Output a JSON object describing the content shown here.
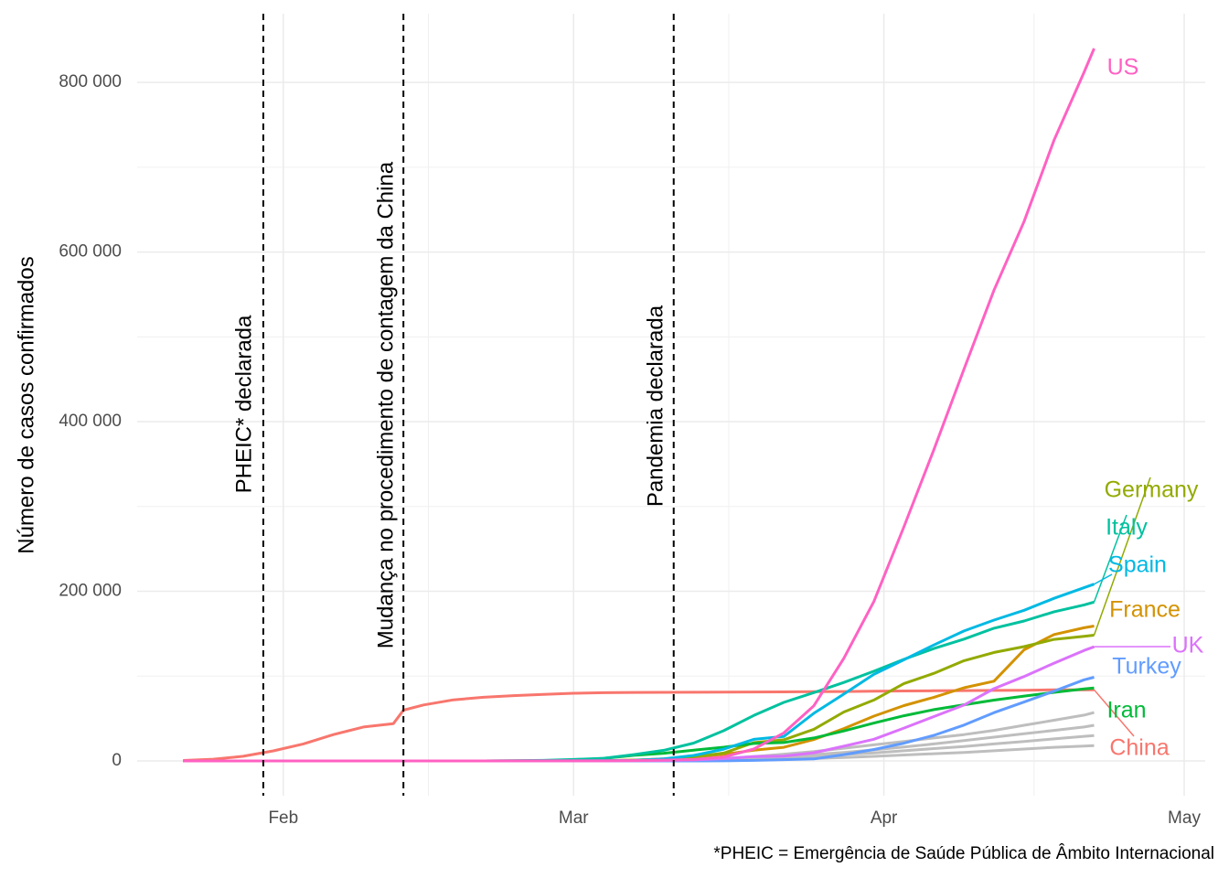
{
  "chart_data": {
    "type": "line",
    "y_label": "Número de casos confirmados",
    "caption": "*PHEIC = Emergência de Saúde Pública de Âmbito Internacional",
    "x": [
      22,
      25,
      28,
      31,
      34,
      37,
      40,
      43,
      44,
      46,
      49,
      52,
      55,
      58,
      61,
      64,
      67,
      70,
      73,
      76,
      79,
      82,
      85,
      88,
      91,
      94,
      97,
      100,
      103,
      106,
      109,
      112,
      113
    ],
    "xlim": [
      17.4,
      124.1
    ],
    "xticks": [
      {
        "value": 32,
        "label": "Feb"
      },
      {
        "value": 61,
        "label": "Mar"
      },
      {
        "value": 92,
        "label": "Apr"
      },
      {
        "value": 122,
        "label": "May"
      }
    ],
    "ylim": [
      -41000,
      881000
    ],
    "yticks": [
      0,
      {
        "value": 200000,
        "label": "200 000"
      },
      {
        "value": 400000,
        "label": "400 000"
      },
      {
        "value": 600000,
        "label": "600 000"
      },
      {
        "value": 800000,
        "label": "800 000"
      }
    ],
    "grid": true,
    "minor_grid": true,
    "annotations": [
      {
        "x": 30,
        "label": "PHEIC* declarada"
      },
      {
        "x": 44,
        "label": "Mudança no procedimento de contagem da China"
      },
      {
        "x": 71,
        "label": "Pandemia declarada"
      }
    ],
    "other_color": "#bebebe",
    "others": [
      {
        "values": [
          0,
          0,
          0,
          0,
          0,
          0,
          0,
          0,
          0,
          0,
          0,
          0,
          0,
          0,
          10,
          50,
          200,
          600,
          1500,
          3000,
          5000,
          8000,
          11000,
          15000,
          19000,
          23000,
          27000,
          31000,
          36000,
          42000,
          48000,
          54000,
          57000
        ]
      },
      {
        "values": [
          0,
          0,
          0,
          0,
          0,
          0,
          0,
          0,
          0,
          0,
          0,
          0,
          0,
          0,
          5,
          20,
          80,
          300,
          800,
          1800,
          3200,
          5000,
          7500,
          10000,
          13000,
          16500,
          20000,
          24000,
          28000,
          32000,
          36000,
          40000,
          42000
        ]
      },
      {
        "values": [
          0,
          0,
          0,
          0,
          0,
          0,
          0,
          0,
          0,
          0,
          0,
          0,
          0,
          0,
          2,
          10,
          50,
          200,
          500,
          1200,
          2300,
          3800,
          5500,
          7500,
          9500,
          12000,
          14500,
          17000,
          20000,
          23000,
          26000,
          29000,
          30000
        ]
      },
      {
        "values": [
          0,
          0,
          0,
          0,
          0,
          0,
          0,
          0,
          0,
          0,
          0,
          0,
          0,
          0,
          1,
          5,
          20,
          80,
          200,
          500,
          1000,
          1800,
          2800,
          4000,
          5400,
          7000,
          8500,
          10000,
          12000,
          14000,
          16000,
          17500,
          18000
        ]
      }
    ],
    "series": [
      {
        "name": "China",
        "color": "#F8766D",
        "values": [
          548,
          2000,
          5500,
          11800,
          20000,
          31000,
          40000,
          44000,
          59800,
          66000,
          72000,
          75000,
          77000,
          78500,
          79800,
          80400,
          80800,
          80900,
          81000,
          81200,
          81300,
          81400,
          81600,
          81800,
          82300,
          82500,
          82700,
          82900,
          83100,
          83300,
          83800,
          83900,
          83900
        ]
      },
      {
        "name": "France",
        "color": "#D39200",
        "values": [
          0,
          3,
          4,
          6,
          6,
          6,
          11,
          11,
          11,
          12,
          12,
          12,
          12,
          38,
          130,
          290,
          950,
          2300,
          4500,
          7700,
          12600,
          16000,
          25200,
          38100,
          52800,
          65200,
          75000,
          86300,
          94000,
          131000,
          149000,
          157000,
          159000
        ]
      },
      {
        "name": "Germany",
        "color": "#93AA00",
        "values": [
          0,
          0,
          4,
          5,
          12,
          13,
          14,
          16,
          16,
          16,
          16,
          16,
          16,
          27,
          130,
          260,
          1000,
          1900,
          4600,
          9300,
          21500,
          24900,
          37300,
          57700,
          71800,
          91200,
          103300,
          118200,
          127900,
          134800,
          143300,
          147000,
          148300
        ]
      },
      {
        "name": "Iran",
        "color": "#00BA38",
        "values": [
          0,
          0,
          0,
          0,
          0,
          0,
          0,
          0,
          0,
          0,
          0,
          0,
          61,
          245,
          978,
          2900,
          6600,
          9000,
          12700,
          16200,
          20600,
          21600,
          27000,
          35400,
          44600,
          53200,
          60500,
          66200,
          71700,
          76400,
          80900,
          84800,
          85900
        ]
      },
      {
        "name": "Italy",
        "color": "#00C19F",
        "values": [
          0,
          0,
          0,
          2,
          2,
          3,
          3,
          3,
          3,
          3,
          3,
          3,
          230,
          650,
          1700,
          3100,
          7400,
          12500,
          21000,
          35700,
          53600,
          69000,
          80500,
          92500,
          105800,
          119800,
          132500,
          143600,
          156400,
          165000,
          175900,
          183900,
          187300
        ]
      },
      {
        "name": "Spain",
        "color": "#00B9E3",
        "values": [
          0,
          0,
          0,
          0,
          1,
          1,
          1,
          2,
          2,
          2,
          2,
          2,
          2,
          32,
          84,
          260,
          670,
          2300,
          6400,
          13900,
          25400,
          28800,
          56200,
          78800,
          102100,
          119200,
          136700,
          153200,
          166000,
          177600,
          191700,
          204200,
          208400
        ]
      },
      {
        "name": "Turkey",
        "color": "#619CFF",
        "values": [
          0,
          0,
          0,
          0,
          0,
          0,
          0,
          0,
          0,
          0,
          0,
          0,
          0,
          0,
          0,
          0,
          0,
          1,
          5,
          98,
          670,
          1500,
          2400,
          7400,
          13500,
          20900,
          30200,
          42300,
          56900,
          69400,
          82300,
          95600,
          98700
        ]
      },
      {
        "name": "UK",
        "color": "#DB72FB",
        "values": [
          0,
          0,
          0,
          2,
          2,
          3,
          3,
          9,
          9,
          9,
          9,
          9,
          13,
          15,
          36,
          90,
          270,
          460,
          1140,
          2700,
          5000,
          5700,
          9600,
          17300,
          25500,
          38700,
          52300,
          65900,
          85200,
          99500,
          115300,
          130200,
          134600
        ]
      },
      {
        "name": "US",
        "color": "#FF61C3",
        "values": [
          1,
          2,
          5,
          7,
          11,
          12,
          12,
          13,
          13,
          15,
          15,
          15,
          51,
          60,
          70,
          100,
          400,
          1000,
          1700,
          4600,
          14000,
          33000,
          65000,
          121000,
          188000,
          276000,
          367000,
          462000,
          555000,
          636000,
          732000,
          812000,
          840000
        ]
      }
    ]
  }
}
